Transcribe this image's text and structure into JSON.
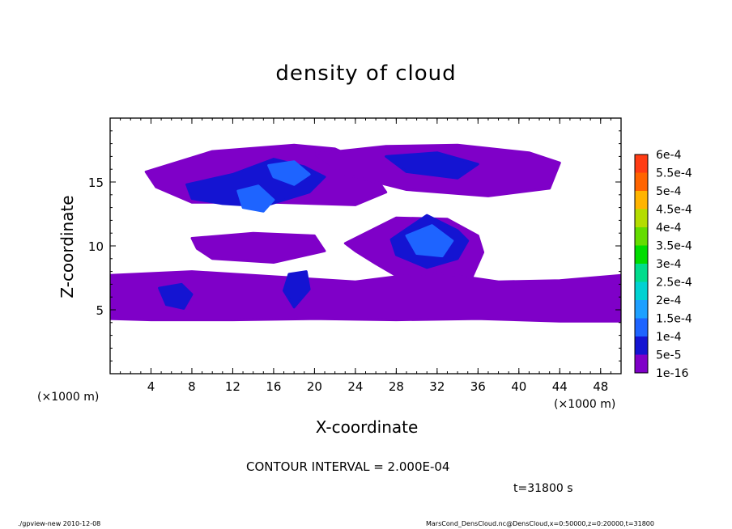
{
  "chart_data": {
    "type": "heatmap",
    "title": "density of cloud",
    "xlabel": "X-coordinate",
    "ylabel": "Z-coordinate",
    "x_unit": "(×1000 m)",
    "xlim": [
      0,
      50
    ],
    "ylim": [
      0,
      20
    ],
    "x_ticks": [
      4,
      8,
      12,
      16,
      20,
      24,
      28,
      32,
      36,
      40,
      44,
      48
    ],
    "y_ticks": [
      5,
      10,
      15
    ],
    "colorbar": {
      "levels": [
        {
          "label": "1e-16",
          "color": "#7f00c8"
        },
        {
          "label": "5e-5",
          "color": "#1414d2"
        },
        {
          "label": "1e-4",
          "color": "#1e64ff"
        },
        {
          "label": "1.5e-4",
          "color": "#1ea0ff"
        },
        {
          "label": "2e-4",
          "color": "#00d2d2"
        },
        {
          "label": "2.5e-4",
          "color": "#00dc8c"
        },
        {
          "label": "3e-4",
          "color": "#00dc00"
        },
        {
          "label": "3.5e-4",
          "color": "#64dc00"
        },
        {
          "label": "4e-4",
          "color": "#b4dc00"
        },
        {
          "label": "4.5e-4",
          "color": "#ffb400"
        },
        {
          "label": "5e-4",
          "color": "#ff6400"
        },
        {
          "label": "5.5e-4",
          "color": "#ff3c14"
        },
        {
          "label": "6e-4",
          "color": "#ff8282"
        }
      ]
    },
    "cloud_regions": [
      {
        "level": 0,
        "x": [
          3.5,
          10,
          18,
          22,
          25,
          27,
          24,
          16,
          8,
          4.5
        ],
        "z": [
          15.8,
          17.4,
          17.9,
          17.6,
          16.5,
          14.2,
          13.2,
          13.4,
          13.4,
          14.6
        ]
      },
      {
        "level": 0,
        "x": [
          20,
          27,
          34,
          41,
          44,
          43,
          37,
          29,
          23
        ],
        "z": [
          17.2,
          17.8,
          17.9,
          17.3,
          16.5,
          14.5,
          13.9,
          14.4,
          15.6
        ]
      },
      {
        "level": 0,
        "x": [
          8,
          14,
          20,
          21,
          16,
          10,
          8.5
        ],
        "z": [
          10.6,
          11.0,
          10.8,
          9.6,
          8.7,
          9.0,
          9.8
        ]
      },
      {
        "level": 0,
        "x": [
          23,
          28,
          33,
          36,
          36.5,
          35,
          29,
          26,
          24
        ],
        "z": [
          10.2,
          12.2,
          12.1,
          10.8,
          9.5,
          6.8,
          7.2,
          8.6,
          9.6
        ]
      },
      {
        "level": 0,
        "x": [
          0,
          8,
          16,
          24,
          28,
          32,
          38,
          44,
          50,
          50,
          44,
          36,
          28,
          20,
          12,
          4,
          0
        ],
        "z": [
          7.7,
          8.0,
          7.6,
          7.2,
          7.6,
          7.9,
          7.2,
          7.3,
          7.7,
          4.1,
          4.1,
          4.3,
          4.2,
          4.3,
          4.2,
          4.2,
          4.3
        ]
      },
      {
        "level": 1,
        "x": [
          7.5,
          12,
          16,
          19,
          21,
          19.5,
          15,
          11,
          8
        ],
        "z": [
          14.8,
          15.6,
          16.8,
          16.2,
          15.4,
          14.2,
          13.1,
          13.3,
          13.7
        ]
      },
      {
        "level": 1,
        "x": [
          27.5,
          31,
          34,
          35,
          34,
          31,
          28
        ],
        "z": [
          10.5,
          12.4,
          11.2,
          10.4,
          9.0,
          8.3,
          9.3
        ]
      },
      {
        "level": 1,
        "x": [
          4.8,
          7,
          8,
          7.2,
          5.5
        ],
        "z": [
          6.7,
          7.0,
          6.2,
          5.1,
          5.4
        ]
      },
      {
        "level": 1,
        "x": [
          17.5,
          19.2,
          19.5,
          18,
          17
        ],
        "z": [
          7.8,
          8.0,
          6.6,
          5.2,
          6.5
        ]
      },
      {
        "level": 1,
        "x": [
          27,
          32,
          36,
          34,
          29
        ],
        "z": [
          17.0,
          17.3,
          16.4,
          15.3,
          15.8
        ]
      },
      {
        "level": 2,
        "x": [
          12.5,
          14.5,
          16,
          15,
          13
        ],
        "z": [
          14.3,
          14.7,
          13.6,
          12.7,
          13.0
        ]
      },
      {
        "level": 2,
        "x": [
          29,
          31.5,
          33.5,
          32.5,
          30
        ],
        "z": [
          10.8,
          11.6,
          10.4,
          9.2,
          9.4
        ]
      },
      {
        "level": 2,
        "x": [
          15.5,
          18,
          19.5,
          18,
          16
        ],
        "z": [
          16.3,
          16.6,
          15.6,
          14.8,
          15.4
        ]
      }
    ]
  },
  "x_unit_right": "(×1000 m)",
  "contour_interval": "CONTOUR INTERVAL = 2.000E-04",
  "time_label": "t=31800 s",
  "footer_left": "./gpview-new   2010-12-08",
  "footer_right": "MarsCond_DensCloud.nc@DensCloud,x=0:50000,z=0:20000,t=31800"
}
